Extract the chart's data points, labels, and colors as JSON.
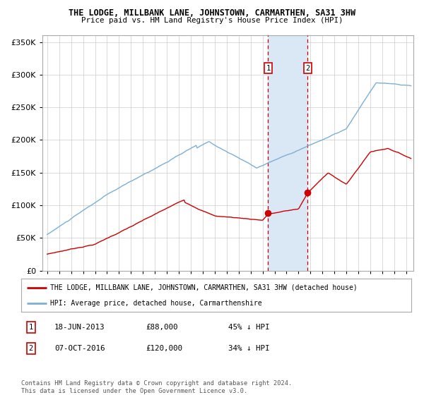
{
  "title": "THE LODGE, MILLBANK LANE, JOHNSTOWN, CARMARTHEN, SA31 3HW",
  "subtitle": "Price paid vs. HM Land Registry's House Price Index (HPI)",
  "legend_line1": "THE LODGE, MILLBANK LANE, JOHNSTOWN, CARMARTHEN, SA31 3HW (detached house)",
  "legend_line2": "HPI: Average price, detached house, Carmarthenshire",
  "transaction1_date": "18-JUN-2013",
  "transaction1_price": 88000,
  "transaction1_pct": "45% ↓ HPI",
  "transaction2_date": "07-OCT-2016",
  "transaction2_price": 120000,
  "transaction2_pct": "34% ↓ HPI",
  "copyright": "Contains HM Land Registry data © Crown copyright and database right 2024.\nThis data is licensed under the Open Government Licence v3.0.",
  "red_color": "#cc0000",
  "blue_color": "#7bafd4",
  "shade_color": "#dae8f5",
  "grid_color": "#cccccc",
  "bg_color": "#ffffff",
  "ylim": [
    0,
    360000
  ],
  "xlim_start": 1994.6,
  "xlim_end": 2025.6,
  "t1_x": 2013.46,
  "t2_x": 2016.77,
  "t1_y": 88000,
  "t2_y": 120000
}
